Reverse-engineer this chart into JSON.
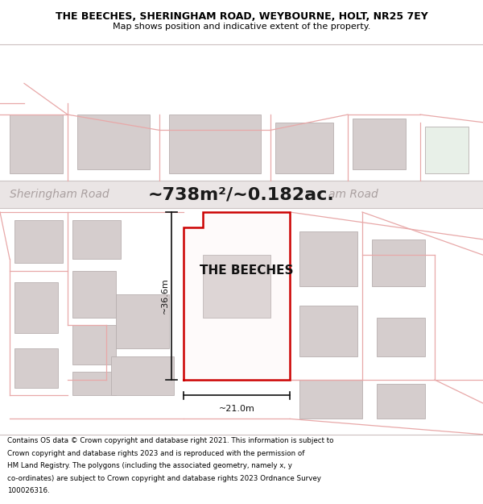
{
  "title_line1": "THE BEECHES, SHERINGHAM ROAD, WEYBOURNE, HOLT, NR25 7EY",
  "title_line2": "Map shows position and indicative extent of the property.",
  "area_text": "~738m²/~0.182ac.",
  "road_label_left": "Sheringham Road",
  "road_label_right": "am Road",
  "property_label": "THE BEECHES",
  "dim_height": "~36.6m",
  "dim_width": "~21.0m",
  "footer_lines": [
    "Contains OS data © Crown copyright and database right 2021. This information is subject to",
    "Crown copyright and database rights 2023 and is reproduced with the permission of",
    "HM Land Registry. The polygons (including the associated geometry, namely x, y",
    "co-ordinates) are subject to Crown copyright and database rights 2023 Ordnance Survey",
    "100026316."
  ],
  "map_bg": "#f5f0f0",
  "road_bg": "#eae5e5",
  "building_fill": "#d5cdcd",
  "building_edge": "#b8b0b0",
  "highlight_fill": "#fefafa",
  "highlight_edge": "#cc0000",
  "pink_line": "#e8a8a8",
  "road_text_color": "#aaa0a0",
  "area_text_color": "#1a1a1a",
  "dim_color": "#111111",
  "green_tint": "#e8f0e8"
}
